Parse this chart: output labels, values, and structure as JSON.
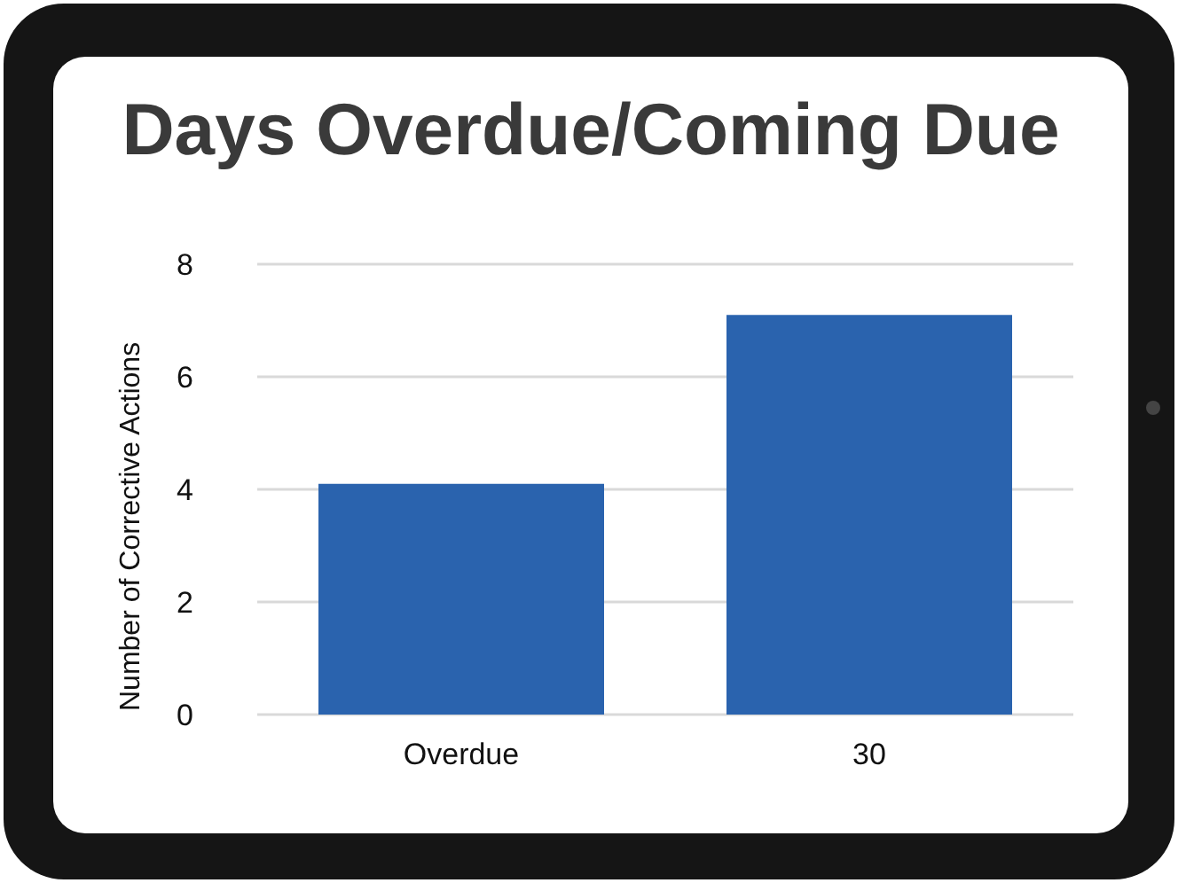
{
  "chart_data": {
    "type": "bar",
    "title": "Days Overdue/Coming Due",
    "ylabel": "Number of Corrective Actions",
    "categories": [
      "Overdue",
      "30"
    ],
    "values": [
      4.1,
      7.1
    ],
    "color": "#2a63ae",
    "ylim": [
      0,
      8
    ],
    "yticks": [
      0,
      2,
      4,
      6,
      8
    ],
    "grid": "y"
  }
}
